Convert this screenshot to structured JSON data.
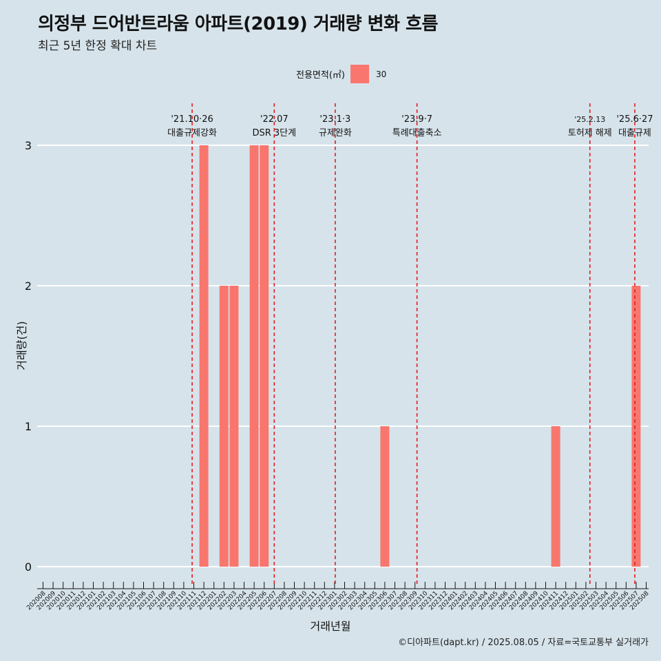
{
  "chart_data": {
    "type": "bar",
    "title": "의정부 드어반트라움 아파트(2019) 거래량 변화 흐름",
    "subtitle": "최근 5년 한정 확대 차트",
    "xlabel": "거래년월",
    "ylabel": "거래량(건)",
    "legend_title": "전용면적(㎡)",
    "legend_placement": "top",
    "series": [
      {
        "name": "30",
        "color": "#f8766d"
      }
    ],
    "categories": [
      "202008",
      "202009",
      "202010",
      "202011",
      "202012",
      "202101",
      "202102",
      "202103",
      "202104",
      "202105",
      "202106",
      "202107",
      "202108",
      "202109",
      "202110",
      "202111",
      "202112",
      "202201",
      "202202",
      "202203",
      "202204",
      "202205",
      "202206",
      "202207",
      "202208",
      "202209",
      "202210",
      "202211",
      "202212",
      "202301",
      "202302",
      "202303",
      "202304",
      "202305",
      "202306",
      "202307",
      "202308",
      "202309",
      "202310",
      "202311",
      "202312",
      "202401",
      "202402",
      "202403",
      "202404",
      "202405",
      "202406",
      "202407",
      "202408",
      "202409",
      "202410",
      "202411",
      "202412",
      "202501",
      "202502",
      "202503",
      "202504",
      "202505",
      "202506",
      "202507",
      "202508"
    ],
    "bars": [
      {
        "x": "202112",
        "value": 3
      },
      {
        "x": "202202",
        "value": 2
      },
      {
        "x": "202203",
        "value": 2
      },
      {
        "x": "202205",
        "value": 3
      },
      {
        "x": "202206",
        "value": 3
      },
      {
        "x": "202306",
        "value": 1
      },
      {
        "x": "202411",
        "value": 1
      },
      {
        "x": "202507",
        "value": 2
      }
    ],
    "ylim": [
      0,
      3
    ],
    "yticks": [
      0,
      1,
      2,
      3
    ],
    "grid": true,
    "events": [
      {
        "date": "2021-10-26",
        "label_top": "'21.10·26",
        "label_bottom": "대출규제강화"
      },
      {
        "date": "2022-07",
        "label_top": "'22.07",
        "label_bottom": "DSR 3단계"
      },
      {
        "date": "2023-01-03",
        "label_top": "'23.1·3",
        "label_bottom": "규제완화"
      },
      {
        "date": "2023-09-07",
        "label_top": "'23.9·7",
        "label_bottom": "특례대출축소"
      },
      {
        "date": "2025-02-13",
        "label_top": "'25.2.13",
        "label_bottom": "토허제 해제"
      },
      {
        "date": "2025-06-27",
        "label_top": "'25.6·27",
        "label_bottom": "대출규제"
      }
    ],
    "event_color": "#e41a1c"
  },
  "caption": "©디아파트(dapt.kr) / 2025.08.05 / 자료=국토교통부 실거래가"
}
